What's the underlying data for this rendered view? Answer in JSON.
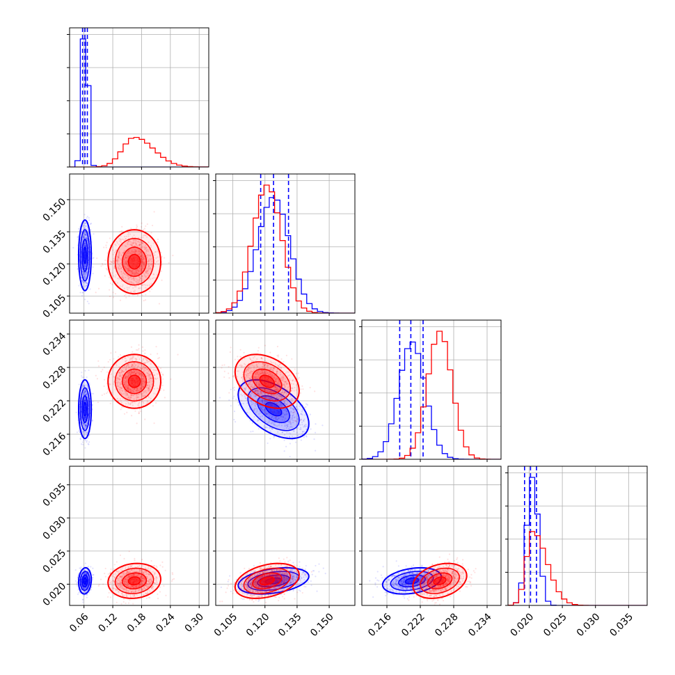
{
  "chart_data": {
    "type": "corner",
    "title": "",
    "parameters": [
      {
        "range": [
          0.03,
          0.32
        ],
        "ticks": [
          0.06,
          0.12,
          0.18,
          0.24,
          0.3
        ],
        "tick_labels": [
          "0.06",
          "0.12",
          "0.18",
          "0.24",
          "0.30"
        ]
      },
      {
        "range": [
          0.097,
          0.162
        ],
        "ticks": [
          0.105,
          0.12,
          0.135,
          0.15
        ],
        "tick_labels": [
          "0.105",
          "0.120",
          "0.135",
          "0.150"
        ]
      },
      {
        "range": [
          0.2115,
          0.2365
        ],
        "ticks": [
          0.216,
          0.222,
          0.228,
          0.234
        ],
        "tick_labels": [
          "0.216",
          "0.222",
          "0.228",
          "0.234"
        ]
      },
      {
        "range": [
          0.0168,
          0.0378
        ],
        "ticks": [
          0.02,
          0.025,
          0.03,
          0.035
        ],
        "tick_labels": [
          "0.020",
          "0.025",
          "0.030",
          "0.035"
        ]
      }
    ],
    "series": [
      {
        "color": "#0000ff",
        "mean": [
          0.062,
          0.124,
          0.2205,
          0.0205
        ],
        "sd": [
          0.006,
          0.0075,
          0.0024,
          0.0009
        ],
        "quantile_lines": [
          [
            0.057,
            0.062,
            0.067
          ],
          [
            0.118,
            0.124,
            0.131
          ],
          [
            0.2183,
            0.2203,
            0.2225
          ],
          [
            0.0193,
            0.0202,
            0.0211
          ]
        ]
      },
      {
        "color": "#ff0000",
        "mean": [
          0.165,
          0.121,
          0.2255,
          0.0205
        ],
        "sd": [
          0.025,
          0.0068,
          0.0022,
          0.0012
        ]
      }
    ],
    "pair_correlations": [
      {
        "pair": [
          0,
          1
        ],
        "blue": 0.0,
        "red": 0.0
      },
      {
        "pair": [
          0,
          2
        ],
        "blue": 0.0,
        "red": 0.0
      },
      {
        "pair": [
          0,
          3
        ],
        "blue": 0.1,
        "red": 0.1
      },
      {
        "pair": [
          1,
          2
        ],
        "blue": -0.5,
        "red": -0.35
      },
      {
        "pair": [
          1,
          3
        ],
        "blue": 0.35,
        "red": 0.35
      },
      {
        "pair": [
          2,
          3
        ],
        "blue": 0.3,
        "red": 0.3
      }
    ],
    "grid": true,
    "legend": "none",
    "background_color": "#ffffff",
    "axes_color": "#000000",
    "grid_color": "#b0b0b0"
  }
}
